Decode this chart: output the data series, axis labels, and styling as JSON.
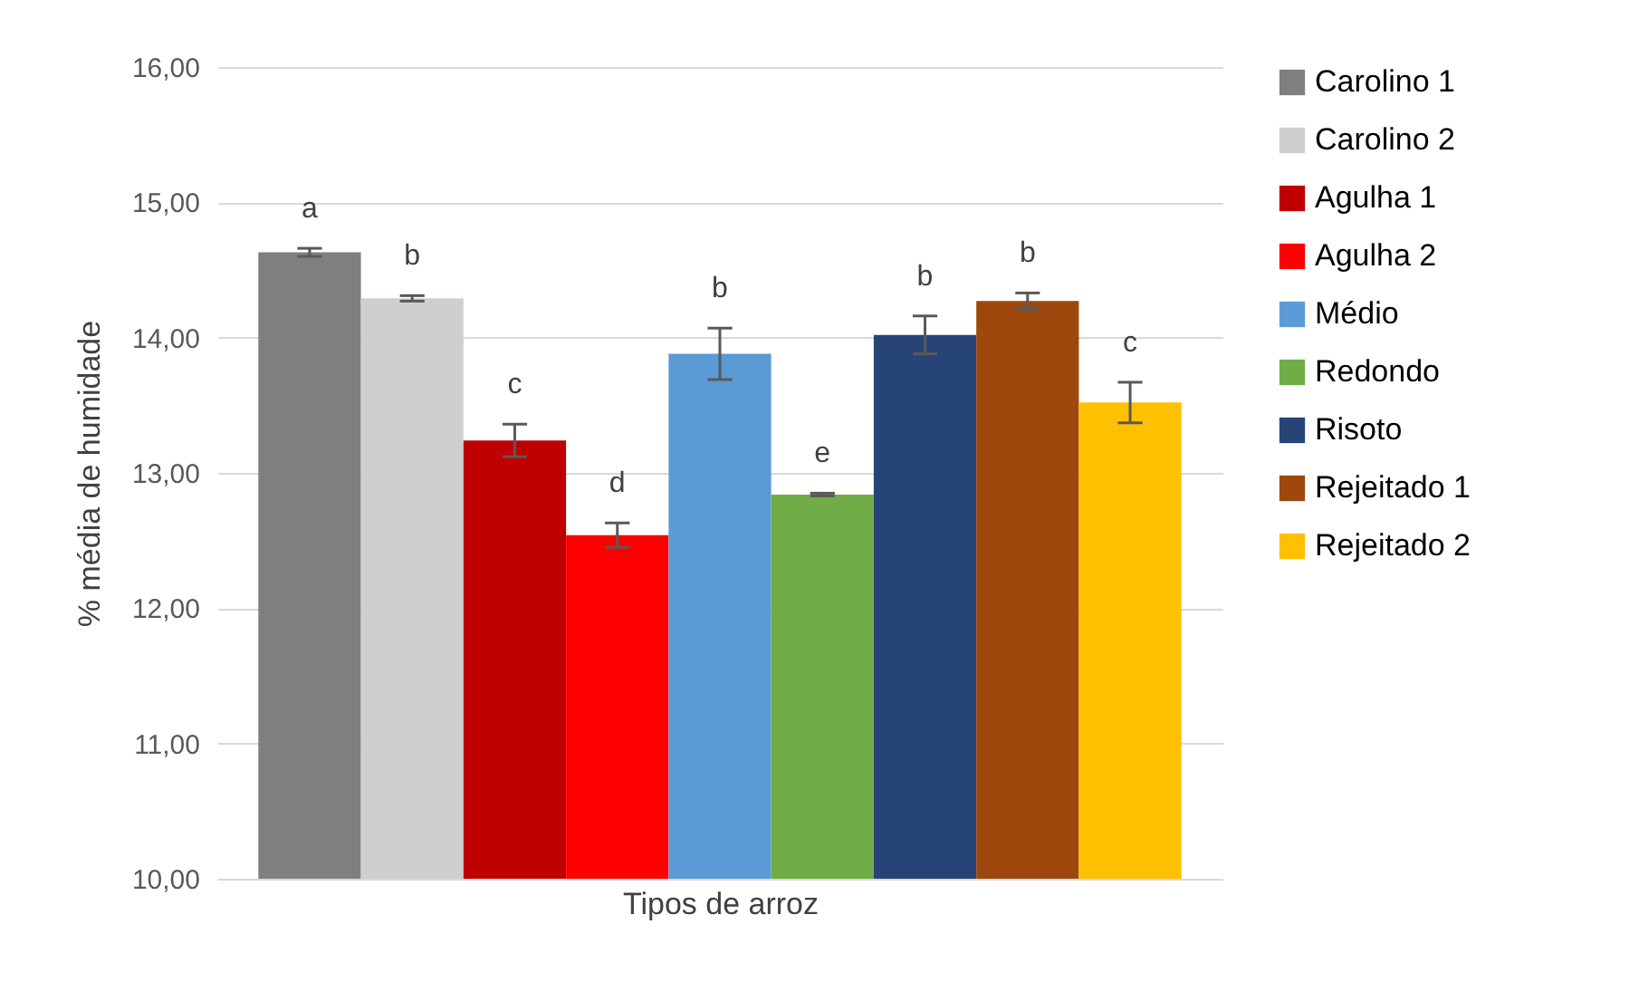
{
  "chart_data": {
    "type": "bar",
    "categories": [
      null
    ],
    "xlabel": "Tipos de arroz",
    "ylabel": "% média de humidade",
    "series": [
      {
        "name": "Carolino 1",
        "color": "#7f7f7f",
        "values": [
          14.63
        ],
        "errors": [
          0.03
        ]
      },
      {
        "name": "Carolino 2",
        "color": "#d0cece",
        "values": [
          14.29
        ],
        "errors": [
          0.02
        ]
      },
      {
        "name": "Agulha 1",
        "color": "#c00000",
        "values": [
          13.24
        ],
        "errors": [
          0.12
        ]
      },
      {
        "name": "Agulha 2",
        "color": "#ff0000",
        "values": [
          12.54
        ],
        "errors": [
          0.09
        ]
      },
      {
        "name": "Médio",
        "color": "#5b9bd5",
        "values": [
          13.88
        ],
        "errors": [
          0.19
        ]
      },
      {
        "name": "Redondo",
        "color": "#70ad47",
        "values": [
          12.84
        ],
        "errors": [
          0.01
        ]
      },
      {
        "name": "Risoto",
        "color": "#264478",
        "values": [
          14.02
        ],
        "errors": [
          0.14
        ]
      },
      {
        "name": "Rejeitado 1",
        "color": "#9e480e",
        "values": [
          14.27
        ],
        "errors": [
          0.06
        ]
      },
      {
        "name": "Rejeitado 2",
        "color": "#ffc000",
        "values": [
          13.52
        ],
        "errors": [
          0.15
        ]
      }
    ],
    "annotations": [
      "a",
      "b",
      "c",
      "d",
      "b",
      "e",
      "b",
      "b",
      "c"
    ],
    "ylim": [
      10,
      16
    ],
    "yticks": [
      {
        "value": 10,
        "label": "10,00"
      },
      {
        "value": 11,
        "label": "11,00"
      },
      {
        "value": 12,
        "label": "12,00"
      },
      {
        "value": 13,
        "label": "13,00"
      },
      {
        "value": 14,
        "label": "14,00"
      },
      {
        "value": 15,
        "label": "15,00"
      },
      {
        "value": 16,
        "label": "16,00"
      }
    ],
    "grid": "y",
    "legend": "right"
  }
}
